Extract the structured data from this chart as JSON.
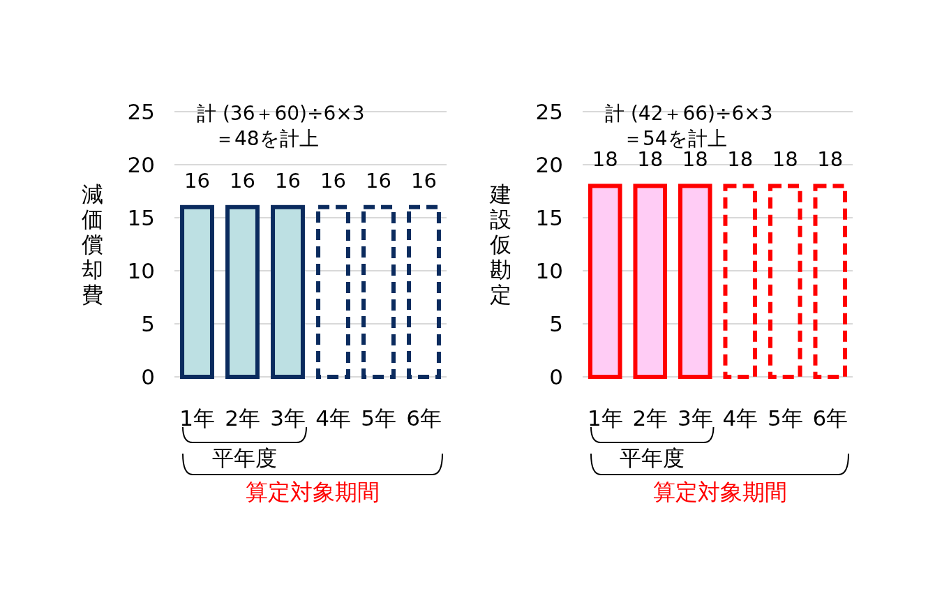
{
  "chart_data": [
    {
      "type": "bar",
      "ylabel": "減価償却費",
      "categories": [
        "1年",
        "2年",
        "3年",
        "4年",
        "5年",
        "6年"
      ],
      "series": [
        {
          "color": "#bde0e3",
          "line_style": "solid",
          "values": [
            16,
            16,
            16,
            null,
            null,
            null
          ]
        },
        {
          "color": "#0b2b5e",
          "line_style": "dashed",
          "values": [
            null,
            null,
            null,
            16,
            16,
            16
          ]
        }
      ],
      "ylim": [
        0,
        25
      ],
      "yticks": [
        0,
        5,
        10,
        15,
        20,
        25
      ],
      "grid": "y",
      "data_labels": true,
      "annotations": [
        "計 (36＋60)÷6×3",
        "＝48を計上",
        "平年度",
        "算定対象期間"
      ]
    },
    {
      "type": "bar",
      "ylabel": "建設仮勘定",
      "categories": [
        "1年",
        "2年",
        "3年",
        "4年",
        "5年",
        "6年"
      ],
      "series": [
        {
          "color": "#ffccf5",
          "line_style": "solid",
          "values": [
            18,
            18,
            18,
            null,
            null,
            null
          ]
        },
        {
          "color": "#ff0000",
          "line_style": "dashed",
          "values": [
            null,
            null,
            null,
            18,
            18,
            18
          ]
        }
      ],
      "ylim": [
        0,
        25
      ],
      "yticks": [
        0,
        5,
        10,
        15,
        20,
        25
      ],
      "grid": "y",
      "data_labels": true,
      "annotations": [
        "計 (42＋66)÷6×3",
        "＝54を計上",
        "平年度",
        "算定対象期間"
      ]
    }
  ]
}
